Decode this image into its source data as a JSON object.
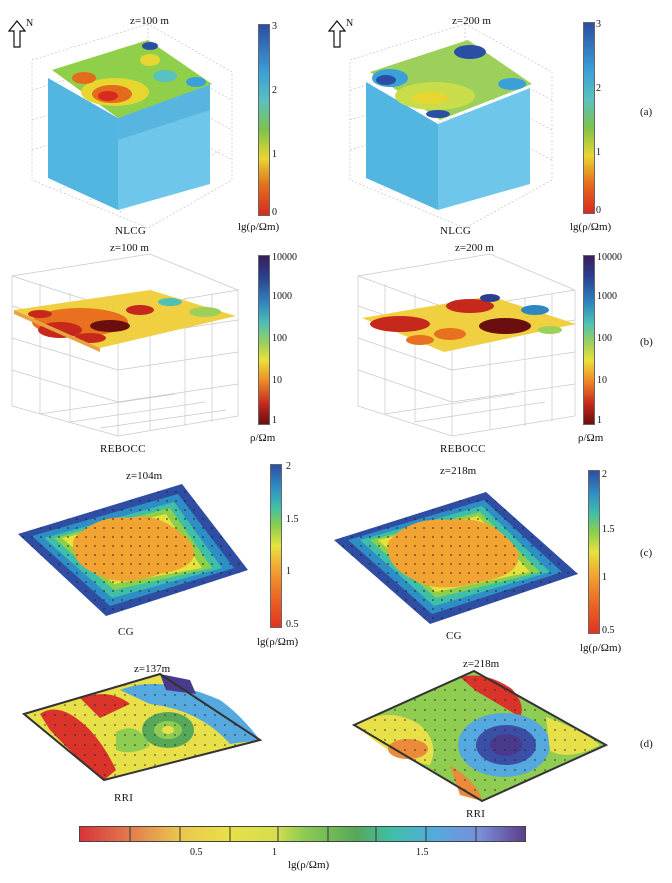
{
  "panels": [
    {
      "letter": "(a)",
      "left": {
        "depth": "z=100 m",
        "method": "NLCG"
      },
      "right": {
        "depth": "z=200 m",
        "method": "NLCG"
      },
      "colorbar_unit": "lg(ρ/Ωm)",
      "colorbar_ticks": [
        "3",
        "2",
        "1",
        "0"
      ]
    },
    {
      "letter": "(b)",
      "left": {
        "depth": "z=100 m",
        "method": "REBOCC"
      },
      "right": {
        "depth": "z=200 m",
        "method": "REBOCC"
      },
      "colorbar_unit": "ρ/Ωm",
      "colorbar_ticks": [
        "10000",
        "1000",
        "100",
        "10",
        "1"
      ]
    },
    {
      "letter": "(c)",
      "left": {
        "depth": "z=104m",
        "method": "CG"
      },
      "right": {
        "depth": "z=218m",
        "method": "CG"
      },
      "colorbar_unit": "lg(ρ/Ωm)",
      "colorbar_ticks": [
        "2",
        "1.5",
        "1",
        "0.5"
      ]
    },
    {
      "letter": "(d)",
      "left": {
        "depth": "z=137m",
        "method": "RRI"
      },
      "right": {
        "depth": "z=218m",
        "method": "RRI"
      },
      "colorbar_unit": "lg(ρ/Ωm)",
      "colorbar_ticks": [
        "0.5",
        "1",
        "1.5"
      ]
    }
  ],
  "north_label": "N",
  "colors": {
    "cb_a": [
      "#2b4ea5",
      "#3aa0d8",
      "#58c2c0",
      "#7cc34a",
      "#e8d630",
      "#e46a1c",
      "#d82a1f"
    ],
    "cb_b": [
      "#3a1f5c",
      "#2a3e8f",
      "#2f86c0",
      "#4ec1b4",
      "#9dd05a",
      "#e9e138",
      "#ef8c26",
      "#c6281c",
      "#6b0e0e"
    ],
    "cb_c": [
      "#2f4ea3",
      "#2e8fc6",
      "#3fbfa8",
      "#8ccf4a",
      "#e6e23c",
      "#f2a432",
      "#ee6b23",
      "#e23320"
    ]
  }
}
